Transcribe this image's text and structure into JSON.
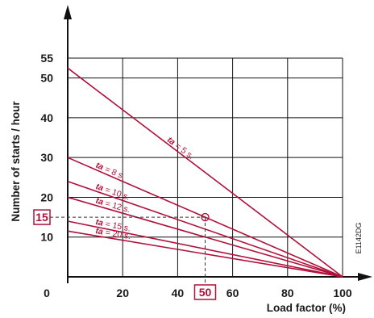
{
  "chart_data": {
    "type": "line",
    "xlabel": "Load factor (%)",
    "ylabel": "Number of starts / hour",
    "xlim": [
      0,
      100
    ],
    "ylim": [
      0,
      55
    ],
    "x_ticks": [
      "0",
      "20",
      "40",
      "60",
      "80",
      "100"
    ],
    "y_ticks": [
      "10",
      "20",
      "30",
      "40",
      "50",
      "55"
    ],
    "grid": true,
    "line_color": "#b0103a",
    "series": [
      {
        "name": "ta = 5 s.",
        "prefix": "ta",
        "suffix": " = 5 s.",
        "x": [
          0,
          100
        ],
        "y": [
          52.5,
          0
        ]
      },
      {
        "name": "ta = 8 s.",
        "prefix": "ta",
        "suffix": " = 8 s.",
        "x": [
          0,
          100
        ],
        "y": [
          30,
          0
        ]
      },
      {
        "name": "ta = 10 s.",
        "prefix": "ta",
        "suffix": " = 10 s.",
        "x": [
          0,
          100
        ],
        "y": [
          24,
          0
        ]
      },
      {
        "name": "ta = 12 s.",
        "prefix": "ta",
        "suffix": " = 12 s.",
        "x": [
          0,
          100
        ],
        "y": [
          20,
          0
        ]
      },
      {
        "name": "ta = 15 s.",
        "prefix": "ta",
        "suffix": " = 15 s.",
        "x": [
          0,
          100
        ],
        "y": [
          14,
          0
        ]
      },
      {
        "name": "ta = 20 s.",
        "prefix": "ta",
        "suffix": " = 20 s.",
        "x": [
          0,
          100
        ],
        "y": [
          11.5,
          0
        ]
      }
    ],
    "annotations": {
      "highlight_x": {
        "label": "50",
        "value": 50
      },
      "highlight_y": {
        "label": "15",
        "value": 15
      },
      "marked_point": {
        "x": 50,
        "y": 15
      }
    },
    "reference_code": "E1142DG"
  }
}
